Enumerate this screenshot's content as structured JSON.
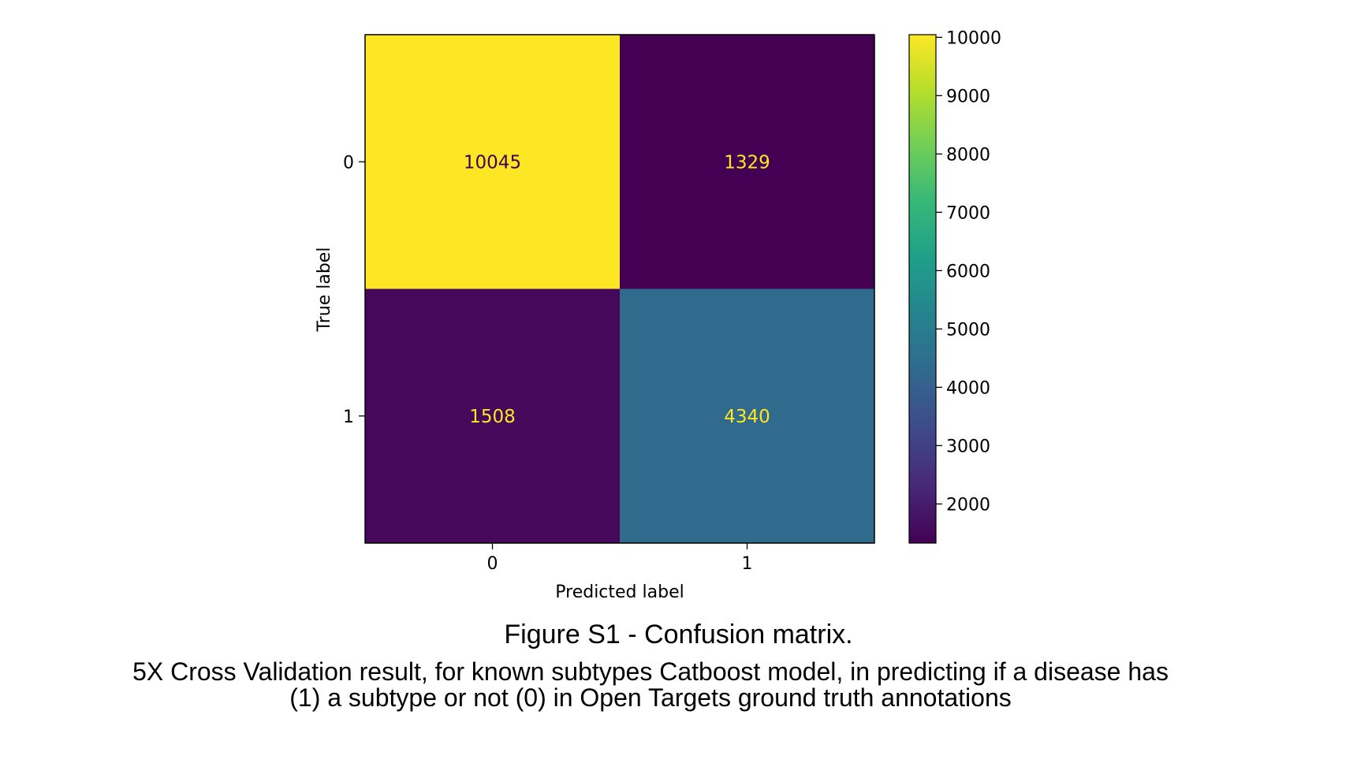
{
  "chart_data": {
    "type": "heatmap",
    "xlabel": "Predicted label",
    "ylabel": "True label",
    "x_categories": [
      "0",
      "1"
    ],
    "y_categories": [
      "0",
      "1"
    ],
    "matrix": [
      [
        10045,
        1329
      ],
      [
        1508,
        4340
      ]
    ],
    "colormap": "viridis",
    "colorbar": {
      "range": [
        1329,
        10045
      ],
      "ticks": [
        2000,
        3000,
        4000,
        5000,
        6000,
        7000,
        8000,
        9000,
        10000
      ]
    },
    "text_colors": {
      "on_dark": "#fde725",
      "on_light": "#440154"
    }
  },
  "caption": {
    "title": "Figure S1 - Confusion matrix.",
    "description": "5X Cross Validation result, for known subtypes Catboost model, in predicting if a disease has (1) a subtype or not (0) in Open Targets ground truth annotations"
  }
}
